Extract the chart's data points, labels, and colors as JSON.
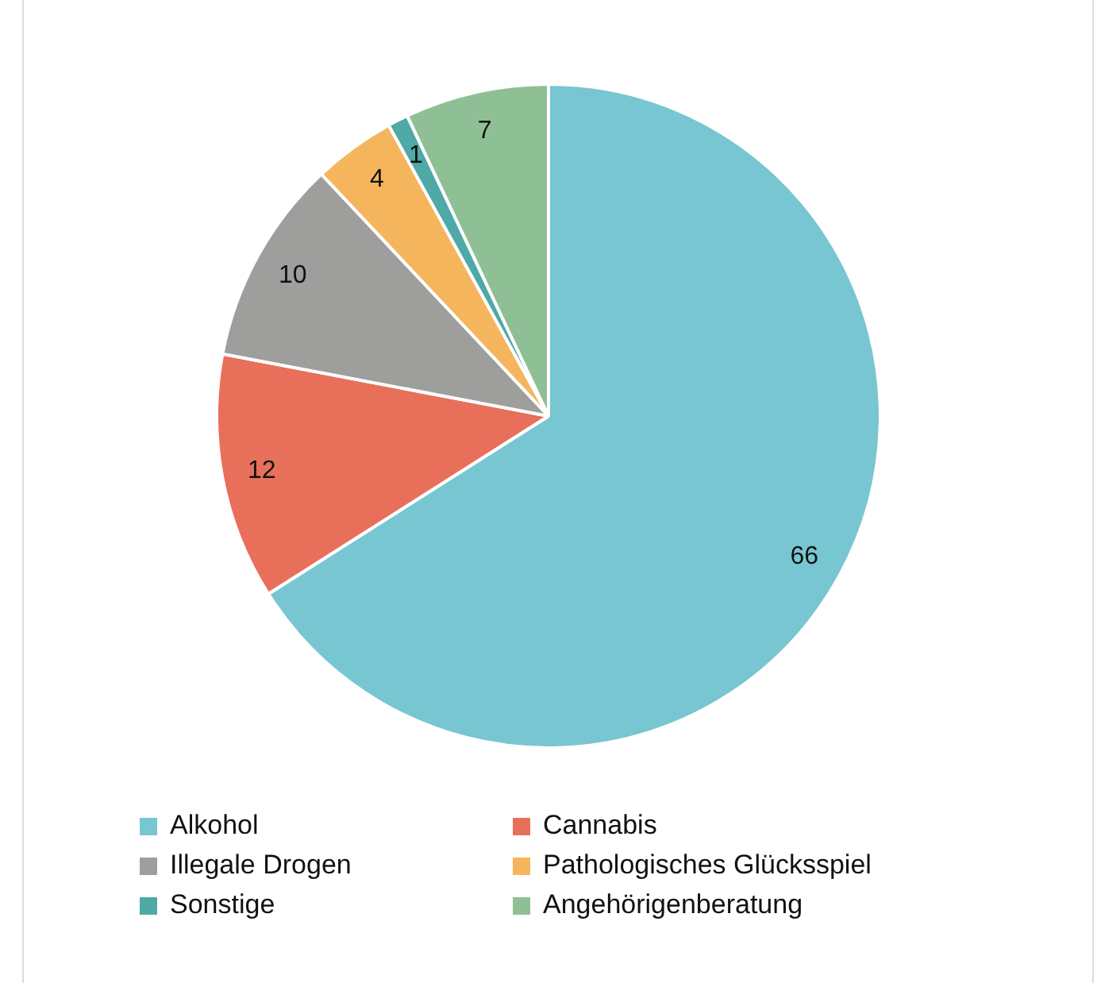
{
  "chart_data": {
    "type": "pie",
    "categories": [
      "Alkohol",
      "Cannabis",
      "Illegale Drogen",
      "Pathologisches Glücksspiel",
      "Sonstige",
      "Angehörigenberatung"
    ],
    "values": [
      66,
      12,
      10,
      4,
      1,
      7
    ],
    "colors": [
      "#78c6d2",
      "#e8705a",
      "#9e9e9c",
      "#f5b55c",
      "#4fa9a6",
      "#8fc095"
    ],
    "data_labels": true,
    "legend": "bottom"
  }
}
